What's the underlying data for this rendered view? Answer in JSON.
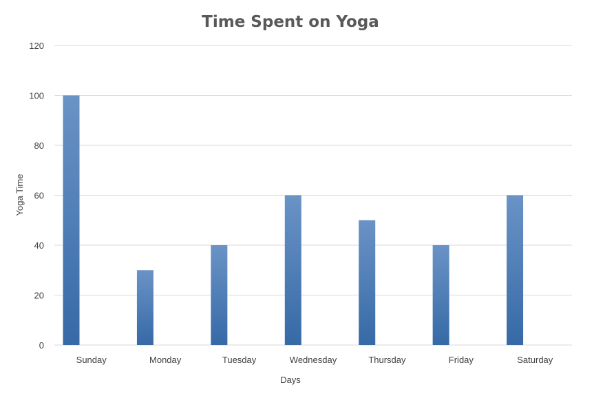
{
  "chart_data": {
    "type": "bar",
    "title": "Time Spent on Yoga",
    "xlabel": "Days",
    "ylabel": "Yoga Time",
    "categories": [
      "Sunday",
      "Monday",
      "Tuesday",
      "Wednesday",
      "Thursday",
      "Friday",
      "Saturday"
    ],
    "values": [
      100,
      30,
      40,
      60,
      50,
      40,
      60
    ],
    "ylim": [
      0,
      120
    ],
    "yticks": [
      0,
      20,
      40,
      60,
      80,
      100,
      120
    ],
    "grid": true,
    "legend": "none",
    "colors": {
      "bar_top": "#6a93c6",
      "bar_bottom": "#3669a6",
      "grid": "#d9d9d9",
      "text": "#404040"
    }
  }
}
